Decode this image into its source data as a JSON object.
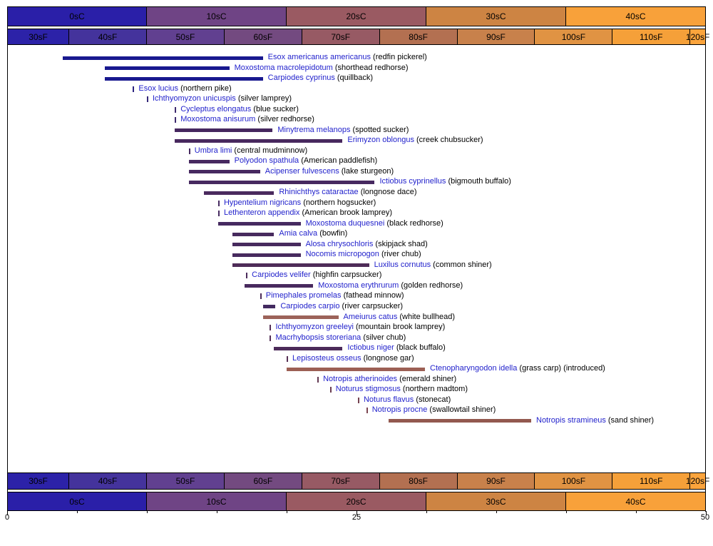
{
  "chart_data": {
    "type": "bar",
    "orientation": "horizontal-range",
    "description_shown_in_pixels_only": "temperature range bars per fish species",
    "x_axis": {
      "min_c": 0,
      "max_c": 50,
      "minor_tick_step_c": 5,
      "x_ticks": [
        {
          "value": 0,
          "label": "0"
        },
        {
          "value": 25,
          "label": "25"
        },
        {
          "value": 50,
          "label": "50"
        }
      ]
    },
    "celsius_bands": [
      {
        "label": "0sC",
        "start_c": 0,
        "end_c": 10,
        "color": "#2a1fa8"
      },
      {
        "label": "10sC",
        "start_c": 10,
        "end_c": 20,
        "color": "#6f4485"
      },
      {
        "label": "20sC",
        "start_c": 20,
        "end_c": 30,
        "color": "#9a5a62"
      },
      {
        "label": "30sC",
        "start_c": 30,
        "end_c": 40,
        "color": "#cd8443"
      },
      {
        "label": "40sC",
        "start_c": 40,
        "end_c": 50,
        "color": "#f8a13a"
      }
    ],
    "fahrenheit_bands": [
      {
        "label": "30sF",
        "start_c": 0,
        "end_c": 4.444,
        "color": "#2c22a8"
      },
      {
        "label": "40sF",
        "start_c": 4.444,
        "end_c": 10,
        "color": "#44339c"
      },
      {
        "label": "50sF",
        "start_c": 10,
        "end_c": 15.556,
        "color": "#614090"
      },
      {
        "label": "60sF",
        "start_c": 15.556,
        "end_c": 21.111,
        "color": "#734a80"
      },
      {
        "label": "70sF",
        "start_c": 21.111,
        "end_c": 26.667,
        "color": "#975a64"
      },
      {
        "label": "80sF",
        "start_c": 26.667,
        "end_c": 32.222,
        "color": "#b37051"
      },
      {
        "label": "90sF",
        "start_c": 32.222,
        "end_c": 37.778,
        "color": "#c8814b"
      },
      {
        "label": "100sF",
        "start_c": 37.778,
        "end_c": 43.333,
        "color": "#e09343"
      },
      {
        "label": "110sF",
        "start_c": 43.333,
        "end_c": 48.889,
        "color": "#f5a039"
      },
      {
        "label": "120sF",
        "start_c": 48.889,
        "end_c": 50,
        "color": "#fba43c"
      }
    ],
    "species": [
      {
        "sci": "Esox americanus americanus",
        "common": "redfin pickerel",
        "range_c": [
          4.0,
          18.3
        ],
        "color": "#19198f"
      },
      {
        "sci": "Moxostoma macrolepidotum",
        "common": "shorthead redhorse",
        "range_c": [
          7.0,
          15.9
        ],
        "color": "#19198f"
      },
      {
        "sci": "Carpiodes cyprinus",
        "common": "quillback",
        "range_c": [
          7.0,
          18.3
        ],
        "color": "#19198f"
      },
      {
        "sci": "Esox lucius",
        "common": "northern pike",
        "range_c": [
          9.0,
          9.0
        ],
        "color": "#2b2380"
      },
      {
        "sci": "Ichthyomyzon unicuspis",
        "common": "silver lamprey",
        "range_c": [
          10.0,
          10.0
        ],
        "color": "#342779"
      },
      {
        "sci": "Cycleptus elongatus",
        "common": "blue sucker",
        "range_c": [
          12.0,
          12.0
        ],
        "color": "#3d2a6e"
      },
      {
        "sci": "Moxostoma anisurum",
        "common": "silver redhorse",
        "range_c": [
          12.0,
          12.0
        ],
        "color": "#3d2a6e"
      },
      {
        "sci": "Minytrema melanops",
        "common": "spotted sucker",
        "range_c": [
          12.0,
          19.0
        ],
        "color": "#46275f"
      },
      {
        "sci": "Erimyzon oblongus",
        "common": "creek chubsucker",
        "range_c": [
          12.0,
          24.0
        ],
        "color": "#48285e"
      },
      {
        "sci": "Umbra limi",
        "common": "central mudminnow",
        "range_c": [
          13.0,
          13.0
        ],
        "color": "#46295f"
      },
      {
        "sci": "Polyodon spathula",
        "common": "American paddlefish",
        "range_c": [
          13.0,
          15.9
        ],
        "color": "#472960"
      },
      {
        "sci": "Acipenser fulvescens",
        "common": "lake sturgeon",
        "range_c": [
          13.0,
          18.1
        ],
        "color": "#472960"
      },
      {
        "sci": "Ictiobus cyprinellus",
        "common": "bigmouth buffalo",
        "range_c": [
          13.0,
          26.3
        ],
        "color": "#472960"
      },
      {
        "sci": "Rhinichthys cataractae",
        "common": "longnose dace",
        "range_c": [
          14.1,
          19.1
        ],
        "color": "#4a2a5e"
      },
      {
        "sci": "Hypentelium nigricans",
        "common": "northern hogsucker",
        "range_c": [
          15.1,
          15.1
        ],
        "color": "#462a60"
      },
      {
        "sci": "Lethenteron appendix",
        "common": "American brook lamprey",
        "range_c": [
          15.1,
          15.1
        ],
        "color": "#462a60"
      },
      {
        "sci": "Moxostoma duquesnei",
        "common": "black redhorse",
        "range_c": [
          15.1,
          21.0
        ],
        "color": "#462a60"
      },
      {
        "sci": "Amia calva",
        "common": "bowfin",
        "range_c": [
          16.1,
          19.1
        ],
        "color": "#472a5e"
      },
      {
        "sci": "Alosa chrysochloris",
        "common": "skipjack shad",
        "range_c": [
          16.1,
          21.0
        ],
        "color": "#472a5e"
      },
      {
        "sci": "Nocomis micropogon",
        "common": "river chub",
        "range_c": [
          16.1,
          21.0
        ],
        "color": "#472a5e"
      },
      {
        "sci": "Luxilus cornutus",
        "common": "common shiner",
        "range_c": [
          16.1,
          25.9
        ],
        "color": "#4e2c58"
      },
      {
        "sci": "Carpiodes velifer",
        "common": "highfin carpsucker",
        "range_c": [
          17.1,
          17.1
        ],
        "color": "#4b2b5b"
      },
      {
        "sci": "Moxostoma erythrurum",
        "common": "golden redhorse",
        "range_c": [
          17.0,
          21.9
        ],
        "color": "#482a5e"
      },
      {
        "sci": "Pimephales promelas",
        "common": "fathead minnow",
        "range_c": [
          18.1,
          18.1
        ],
        "color": "#4d2c59"
      },
      {
        "sci": "Carpiodes carpio",
        "common": "river carpsucker",
        "range_c": [
          18.3,
          19.2
        ],
        "color": "#432a60"
      },
      {
        "sci": "Ameiurus catus",
        "common": "white bullhead",
        "range_c": [
          18.3,
          23.7
        ],
        "color": "#9c635a"
      },
      {
        "sci": "Ichthyomyzon greeleyi",
        "common": "mountain brook lamprey",
        "range_c": [
          18.8,
          18.8
        ],
        "color": "#543057"
      },
      {
        "sci": "Macrhybopsis storeriana",
        "common": "silver chub",
        "range_c": [
          18.8,
          18.8
        ],
        "color": "#543057"
      },
      {
        "sci": "Ictiobus niger",
        "common": "black buffalo",
        "range_c": [
          19.1,
          24.0
        ],
        "color": "#4c2b5a"
      },
      {
        "sci": "Lepisosteus osseus",
        "common": "longnose gar",
        "range_c": [
          20.0,
          20.0
        ],
        "color": "#573156"
      },
      {
        "sci": "Ctenopharyngodon idella",
        "common": "grass carp",
        "note": "(introduced)",
        "range_c": [
          20.0,
          29.9
        ],
        "color": "#9c5f54"
      },
      {
        "sci": "Notropis atherinoides",
        "common": "emerald shiner",
        "range_c": [
          22.2,
          22.2
        ],
        "color": "#643a53"
      },
      {
        "sci": "Noturus stigmosus",
        "common": "northern madtom",
        "range_c": [
          23.1,
          23.1
        ],
        "color": "#6a3d51"
      },
      {
        "sci": "Noturus flavus",
        "common": "stonecat",
        "range_c": [
          25.1,
          25.1
        ],
        "color": "#744250"
      },
      {
        "sci": "Notropis procne",
        "common": "swallowtail shiner",
        "range_c": [
          25.7,
          25.7
        ],
        "color": "#7b4550"
      },
      {
        "sci": "Notropis stramineus",
        "common": "sand shiner",
        "range_c": [
          27.3,
          37.5
        ],
        "color": "#93594f"
      }
    ],
    "colors": {
      "species_name": "#2222cc",
      "common_name": "#000000",
      "band_text": "#000000",
      "axis_text": "#000000"
    }
  }
}
